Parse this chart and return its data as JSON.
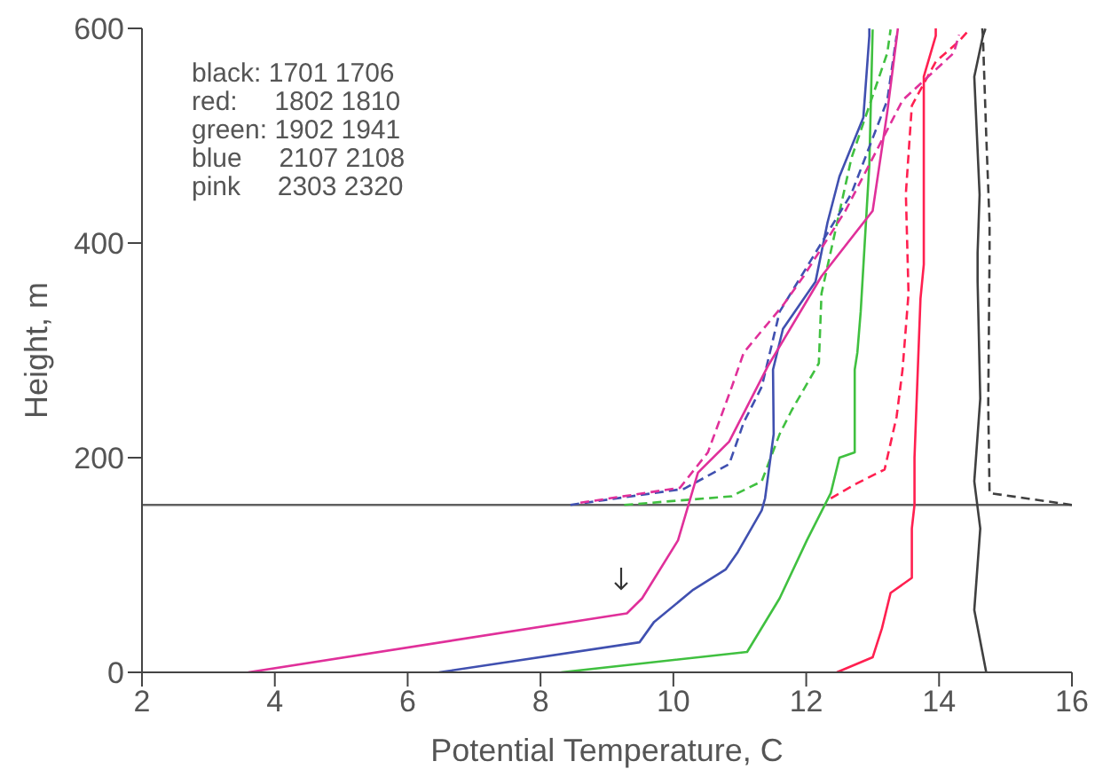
{
  "chart_data": {
    "type": "line",
    "xlabel": "Potential Temperature, C",
    "ylabel": "Height, m",
    "xlim": [
      2,
      16
    ],
    "xticks": [
      2,
      4,
      6,
      8,
      10,
      12,
      14,
      16
    ],
    "ylim": [
      0,
      600
    ],
    "yticks": [
      0,
      200,
      400,
      600
    ],
    "marker": "none",
    "annotations": [
      "black: 1701 1706",
      "red:     1802 1810",
      "green: 1902 1941",
      "blue     2107 2108",
      "pink     2303 2320"
    ],
    "ref_lines": [
      {
        "axis": "y",
        "value": 156,
        "color": "#606060"
      }
    ],
    "series": [
      {
        "color": "#404040",
        "line_style": "solid",
        "x": [
          14.71,
          14.53,
          14.62,
          14.53,
          14.62,
          14.58,
          14.58,
          14.61,
          14.53,
          14.66,
          14.65
        ],
        "values": [
          0,
          58,
          134,
          178,
          255,
          364,
          391,
          445,
          555,
          593,
          600
        ]
      },
      {
        "color": "#404040",
        "line_style": "dashed",
        "x": [
          16,
          14.76,
          14.74,
          14.76,
          14.76,
          14.71,
          14.66,
          14.7
        ],
        "values": [
          156,
          167,
          250,
          391,
          419,
          500,
          593,
          600
        ]
      },
      {
        "color": "#ff2050",
        "line_style": "solid",
        "x": [
          12.46,
          13.0,
          13.14,
          13.27,
          13.59,
          13.59,
          13.63,
          13.63,
          13.72,
          13.77,
          13.77,
          13.95,
          13.95
        ],
        "values": [
          0,
          14,
          41,
          74,
          88,
          134,
          156,
          200,
          348,
          380,
          555,
          593,
          600
        ]
      },
      {
        "color": "#ff2050",
        "line_style": "dashed",
        "x": [
          12.37,
          12.73,
          13.18,
          13.36,
          13.45,
          13.54,
          13.5,
          13.59,
          13.95,
          14.3,
          14.43
        ],
        "values": [
          162,
          175,
          189,
          238,
          282,
          353,
          446,
          528,
          569,
          588,
          597
        ]
      },
      {
        "color": "#40c040",
        "line_style": "solid",
        "x": [
          8.31,
          11.11,
          11.6,
          12.01,
          12.37,
          12.5,
          12.73,
          12.73,
          12.77,
          12.82,
          12.95,
          13.0
        ],
        "values": [
          0,
          19,
          69,
          123,
          167,
          200,
          205,
          282,
          298,
          336,
          473,
          599
        ]
      },
      {
        "color": "#40c040",
        "line_style": "dashed",
        "x": [
          9.26,
          10.88,
          10.97,
          11.33,
          11.6,
          11.78,
          12.19,
          12.23,
          12.68,
          13.22,
          13.27
        ],
        "values": [
          156,
          164,
          167,
          178,
          222,
          244,
          288,
          353,
          479,
          577,
          599
        ]
      },
      {
        "color": "#4050b0",
        "line_style": "solid",
        "x": [
          6.47,
          9.49,
          9.71,
          10.3,
          10.79,
          10.97,
          11.33,
          11.38,
          11.51,
          11.5,
          11.65,
          12.14,
          12.32,
          12.5,
          12.86,
          12.95,
          12.95
        ],
        "values": [
          0,
          28,
          47,
          77,
          96,
          112,
          151,
          162,
          222,
          282,
          320,
          364,
          419,
          462,
          517,
          593,
          600
        ]
      },
      {
        "color": "#4050b0",
        "line_style": "dashed",
        "x": [
          8.45,
          10.16,
          10.84,
          11.06,
          11.33,
          11.6,
          12.68,
          13.22,
          13.36
        ],
        "values": [
          156,
          171,
          194,
          233,
          266,
          336,
          446,
          533,
          593
        ]
      },
      {
        "color": "#e0309a",
        "line_style": "solid",
        "x": [
          3.6,
          9.3,
          9.53,
          10.07,
          10.37,
          10.84,
          11.42,
          12.23,
          13.0,
          13.22,
          13.38
        ],
        "values": [
          0,
          55,
          69,
          123,
          186,
          215,
          285,
          369,
          430,
          522,
          600
        ]
      },
      {
        "color": "#e0309a",
        "line_style": "dashed",
        "x": [
          8.6,
          10.1,
          10.52,
          10.88,
          11.06,
          11.65,
          11.96,
          12.59,
          13.45,
          14.22,
          14.3
        ],
        "values": [
          158,
          172,
          205,
          266,
          298,
          342,
          369,
          430,
          533,
          577,
          594
        ]
      }
    ]
  }
}
